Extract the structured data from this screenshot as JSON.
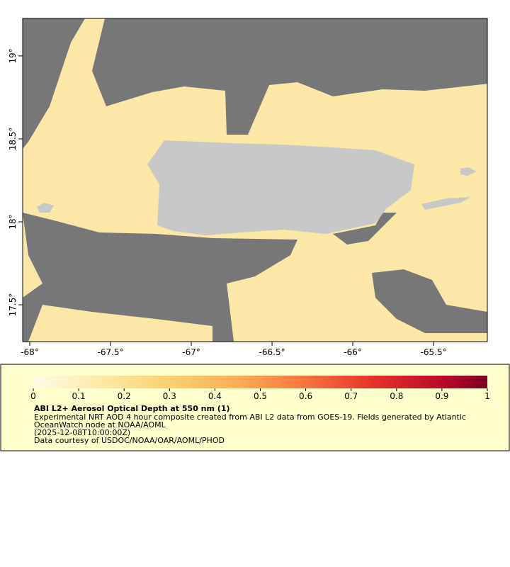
{
  "map": {
    "xlim": [
      -68.044,
      -65.167
    ],
    "ylim": [
      17.278,
      19.226
    ],
    "xticks": [
      {
        "value": -68,
        "label": "-68°"
      },
      {
        "value": -67.5,
        "label": "-67.5°"
      },
      {
        "value": -67,
        "label": "-67°"
      },
      {
        "value": -66.5,
        "label": "-66.5°"
      },
      {
        "value": -66,
        "label": "-66°"
      },
      {
        "value": -65.5,
        "label": "-65.5°"
      }
    ],
    "yticks": [
      {
        "value": 17.5,
        "label": "17.5°"
      },
      {
        "value": 18,
        "label": "18°"
      },
      {
        "value": 18.5,
        "label": "18.5°"
      },
      {
        "value": 19,
        "label": "19°"
      }
    ]
  },
  "colorbar": {
    "range": [
      0,
      1
    ],
    "ticks": [
      0,
      0.1,
      0.2,
      0.3,
      0.4,
      0.5,
      0.6,
      0.7,
      0.8,
      0.9,
      1
    ]
  },
  "legend": {
    "title": "ABI L2+ Aerosol Optical Depth at 550 nm (1)",
    "lines": [
      "Experimental NRT AOD 4 hour composite created from ABI L2 data from GOES-19. Fields generated by Atlantic",
      "OceanWatch node at NOAA/AOML",
      "(2025-12-08T10:00:00Z)",
      "Data courtesy of USDOC/NOAA/OAR/AOML/PHOD"
    ]
  }
}
